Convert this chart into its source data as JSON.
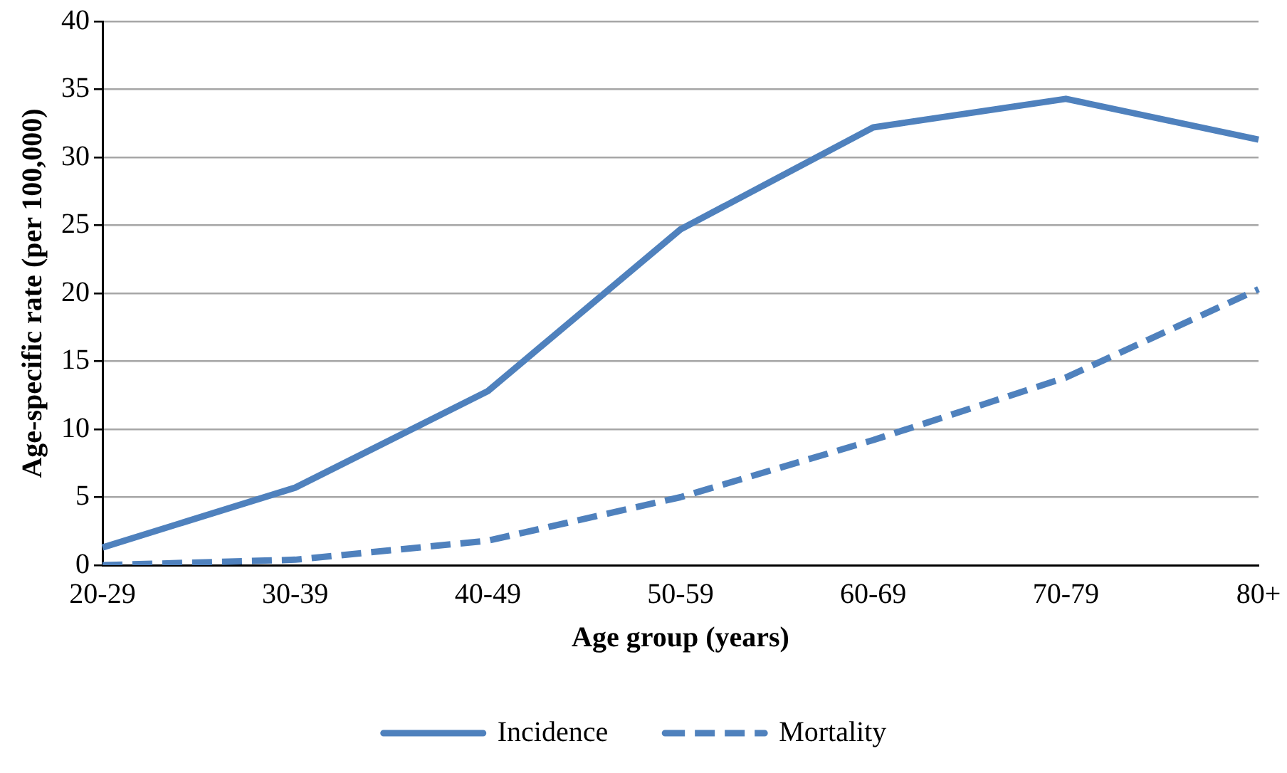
{
  "chart_data": {
    "type": "line",
    "xlabel": "Age group (years)",
    "ylabel": "Age-specific rate (per 100,000)",
    "categories": [
      "20-29",
      "30-39",
      "40-49",
      "50-59",
      "60-69",
      "70-79",
      "80+"
    ],
    "series": [
      {
        "name": "Incidence",
        "color": "#4f81bd",
        "line_style": "solid",
        "values": [
          1.3,
          5.7,
          12.8,
          24.7,
          32.2,
          34.3,
          31.3
        ]
      },
      {
        "name": "Mortality",
        "color": "#4f81bd",
        "line_style": "dashed",
        "values": [
          0.0,
          0.4,
          1.8,
          5.0,
          9.2,
          13.8,
          20.3
        ]
      }
    ],
    "ylim": [
      0,
      40
    ],
    "yticks": [
      0,
      5,
      10,
      15,
      20,
      25,
      30,
      35,
      40
    ],
    "grid": "y",
    "legend": "bottom",
    "marker": "none"
  }
}
